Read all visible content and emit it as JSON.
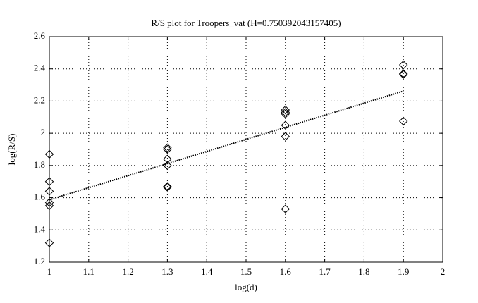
{
  "chart_data": {
    "type": "scatter",
    "title": "R/S plot for Troopers_vat (H=0.750392043157405)",
    "x_label": "log(d)",
    "y_label": "log(R/S)",
    "points": {
      "x": [
        1,
        1,
        1,
        1,
        1,
        1,
        1.3,
        1.3,
        1.3,
        1.3,
        1.3,
        1.3,
        1.6,
        1.6,
        1.6,
        1.6,
        1.6,
        1.6,
        1.9,
        1.9,
        1.9,
        1.9
      ],
      "y": [
        1.87,
        1.7,
        1.64,
        1.57,
        1.55,
        1.32,
        1.91,
        1.9,
        1.84,
        1.8,
        1.67,
        1.665,
        2.145,
        2.13,
        2.12,
        2.05,
        1.98,
        1.53,
        2.425,
        2.37,
        2.365,
        2.075
      ],
      "color": "#000000"
    },
    "fit": {
      "x": [
        1,
        1.9
      ],
      "y": [
        1.587,
        2.262
      ],
      "color": "#000000"
    },
    "xlim": [
      1,
      2
    ],
    "xticks": [
      1,
      1.1,
      1.2,
      1.3,
      1.4,
      1.5,
      1.6,
      1.7,
      1.8,
      1.9,
      2
    ],
    "ylim": [
      1.2,
      2.6
    ],
    "yticks": [
      1.2,
      1.4,
      1.6,
      1.8,
      2,
      2.2,
      2.4,
      2.6
    ],
    "grid": true
  }
}
